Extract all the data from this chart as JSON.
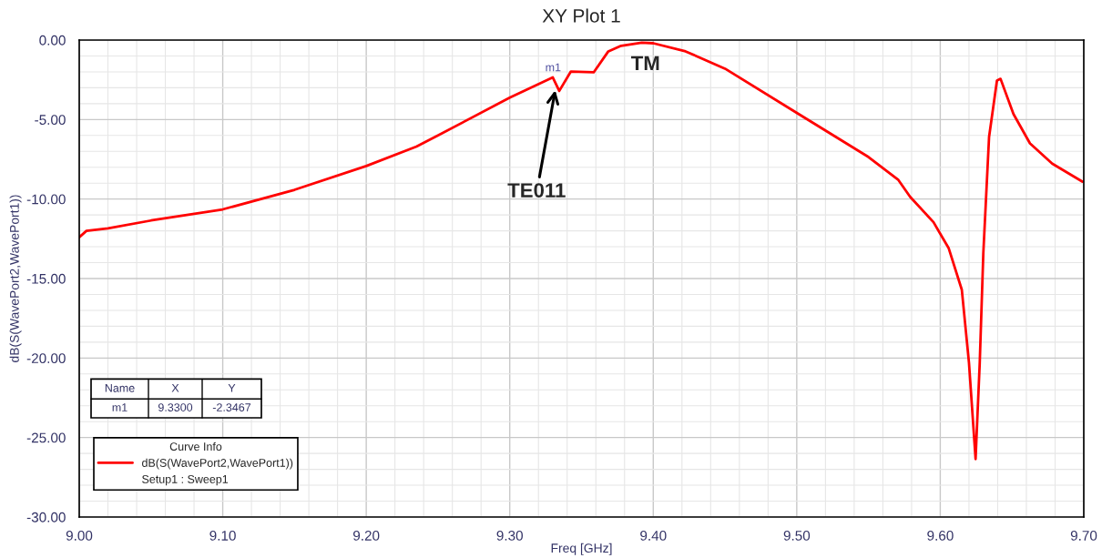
{
  "chart_data": {
    "type": "line",
    "title": "XY Plot 1",
    "xlabel": "Freq [GHz]",
    "ylabel": "dB(S(WavePort2,WavePort1))",
    "legend_title": "Curve Info",
    "legend": "bottom left",
    "grid": true,
    "x": [
      9.0,
      9.005,
      9.02,
      9.05,
      9.1,
      9.15,
      9.2,
      9.235,
      9.25,
      9.3,
      9.33,
      9.3345,
      9.3426,
      9.3585,
      9.3687,
      9.3776,
      9.392,
      9.4,
      9.4225,
      9.45,
      9.5,
      9.55,
      9.5708,
      9.579,
      9.5953,
      9.6059,
      9.615,
      9.62,
      9.6246,
      9.6275,
      9.63,
      9.634,
      9.6395,
      9.642,
      9.651,
      9.6625,
      9.678,
      9.699
    ],
    "series": [
      {
        "name": "dB(S(WavePort2,WavePort1))",
        "color": "#ff0000",
        "values": [
          -12.4,
          -12.0,
          -11.85,
          -11.35,
          -10.65,
          -9.42,
          -7.92,
          -6.7,
          -6.0,
          -3.62,
          -2.35,
          -3.2,
          -1.98,
          -2.03,
          -0.71,
          -0.36,
          -0.17,
          -0.2,
          -0.71,
          -1.8,
          -4.58,
          -7.36,
          -8.8,
          -9.86,
          -11.46,
          -13.1,
          -15.7,
          -20.3,
          -26.35,
          -20.3,
          -13.4,
          -6.1,
          -2.55,
          -2.44,
          -4.65,
          -6.5,
          -7.77,
          -8.9
        ]
      }
    ],
    "xlim": [
      9.0,
      9.7
    ],
    "xticks": [
      {
        "value": 9.0,
        "label": "9.00"
      },
      {
        "value": 9.1,
        "label": "9.10"
      },
      {
        "value": 9.2,
        "label": "9.20"
      },
      {
        "value": 9.3,
        "label": "9.30"
      },
      {
        "value": 9.4,
        "label": "9.40"
      },
      {
        "value": 9.5,
        "label": "9.50"
      },
      {
        "value": 9.6,
        "label": "9.60"
      },
      {
        "value": 9.7,
        "label": "9.70"
      }
    ],
    "ylim": [
      -30,
      0
    ],
    "yticks": [
      {
        "value": 0,
        "label": "0.00"
      },
      {
        "value": -5,
        "label": "-5.00"
      },
      {
        "value": -10,
        "label": "-10.00"
      },
      {
        "value": -15,
        "label": "-15.00"
      },
      {
        "value": -20,
        "label": "-20.00"
      },
      {
        "value": -25,
        "label": "-25.00"
      },
      {
        "value": -30,
        "label": "-30.00"
      }
    ],
    "annotations": [
      {
        "text": "m1",
        "x": 9.33,
        "y": -2.3467
      },
      {
        "text": "TE011",
        "x": 9.332,
        "y": -3.0
      },
      {
        "text": "TM",
        "x": 9.395,
        "y": -0.17
      },
      "Name",
      "X",
      "Y",
      "m1",
      "9.3300",
      "-2.3467",
      "Setup1 : Sweep1"
    ]
  }
}
